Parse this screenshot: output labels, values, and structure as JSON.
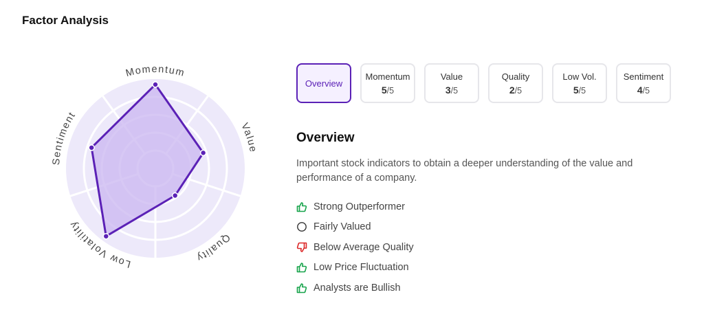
{
  "title": "Factor Analysis",
  "colors": {
    "accent": "#5b21b6",
    "polygon_stroke": "#5b21b6",
    "polygon_fill": "#c9b6f0",
    "radar_bg": "#ede9fa",
    "positive": "#16a34a",
    "negative": "#dc2626",
    "neutral": "#333333"
  },
  "radar": {
    "max": 5,
    "rings": 5,
    "axes": [
      {
        "label": "Momentum",
        "value": 5
      },
      {
        "label": "Value",
        "value": 3
      },
      {
        "label": "Quality",
        "value": 2
      },
      {
        "label": "Low Volatility",
        "value": 5
      },
      {
        "label": "Sentiment",
        "value": 4
      }
    ]
  },
  "tabs": [
    {
      "label": "Overview",
      "active": true
    },
    {
      "label": "Momentum",
      "score": "5",
      "max": "/5"
    },
    {
      "label": "Value",
      "score": "3",
      "max": "/5"
    },
    {
      "label": "Quality",
      "score": "2",
      "max": "/5"
    },
    {
      "label": "Low Vol.",
      "score": "5",
      "max": "/5"
    },
    {
      "label": "Sentiment",
      "score": "4",
      "max": "/5"
    }
  ],
  "overview": {
    "title": "Overview",
    "description": "Important stock indicators to obtain a deeper understanding of the value and performance of a company.",
    "items": [
      {
        "text": "Strong Outperformer",
        "icon": "thumbs-up-icon"
      },
      {
        "text": "Fairly Valued",
        "icon": "circle-icon"
      },
      {
        "text": "Below Average Quality",
        "icon": "thumbs-down-icon"
      },
      {
        "text": "Low Price Fluctuation",
        "icon": "thumbs-up-icon"
      },
      {
        "text": "Analysts are Bullish",
        "icon": "thumbs-up-icon"
      }
    ]
  }
}
